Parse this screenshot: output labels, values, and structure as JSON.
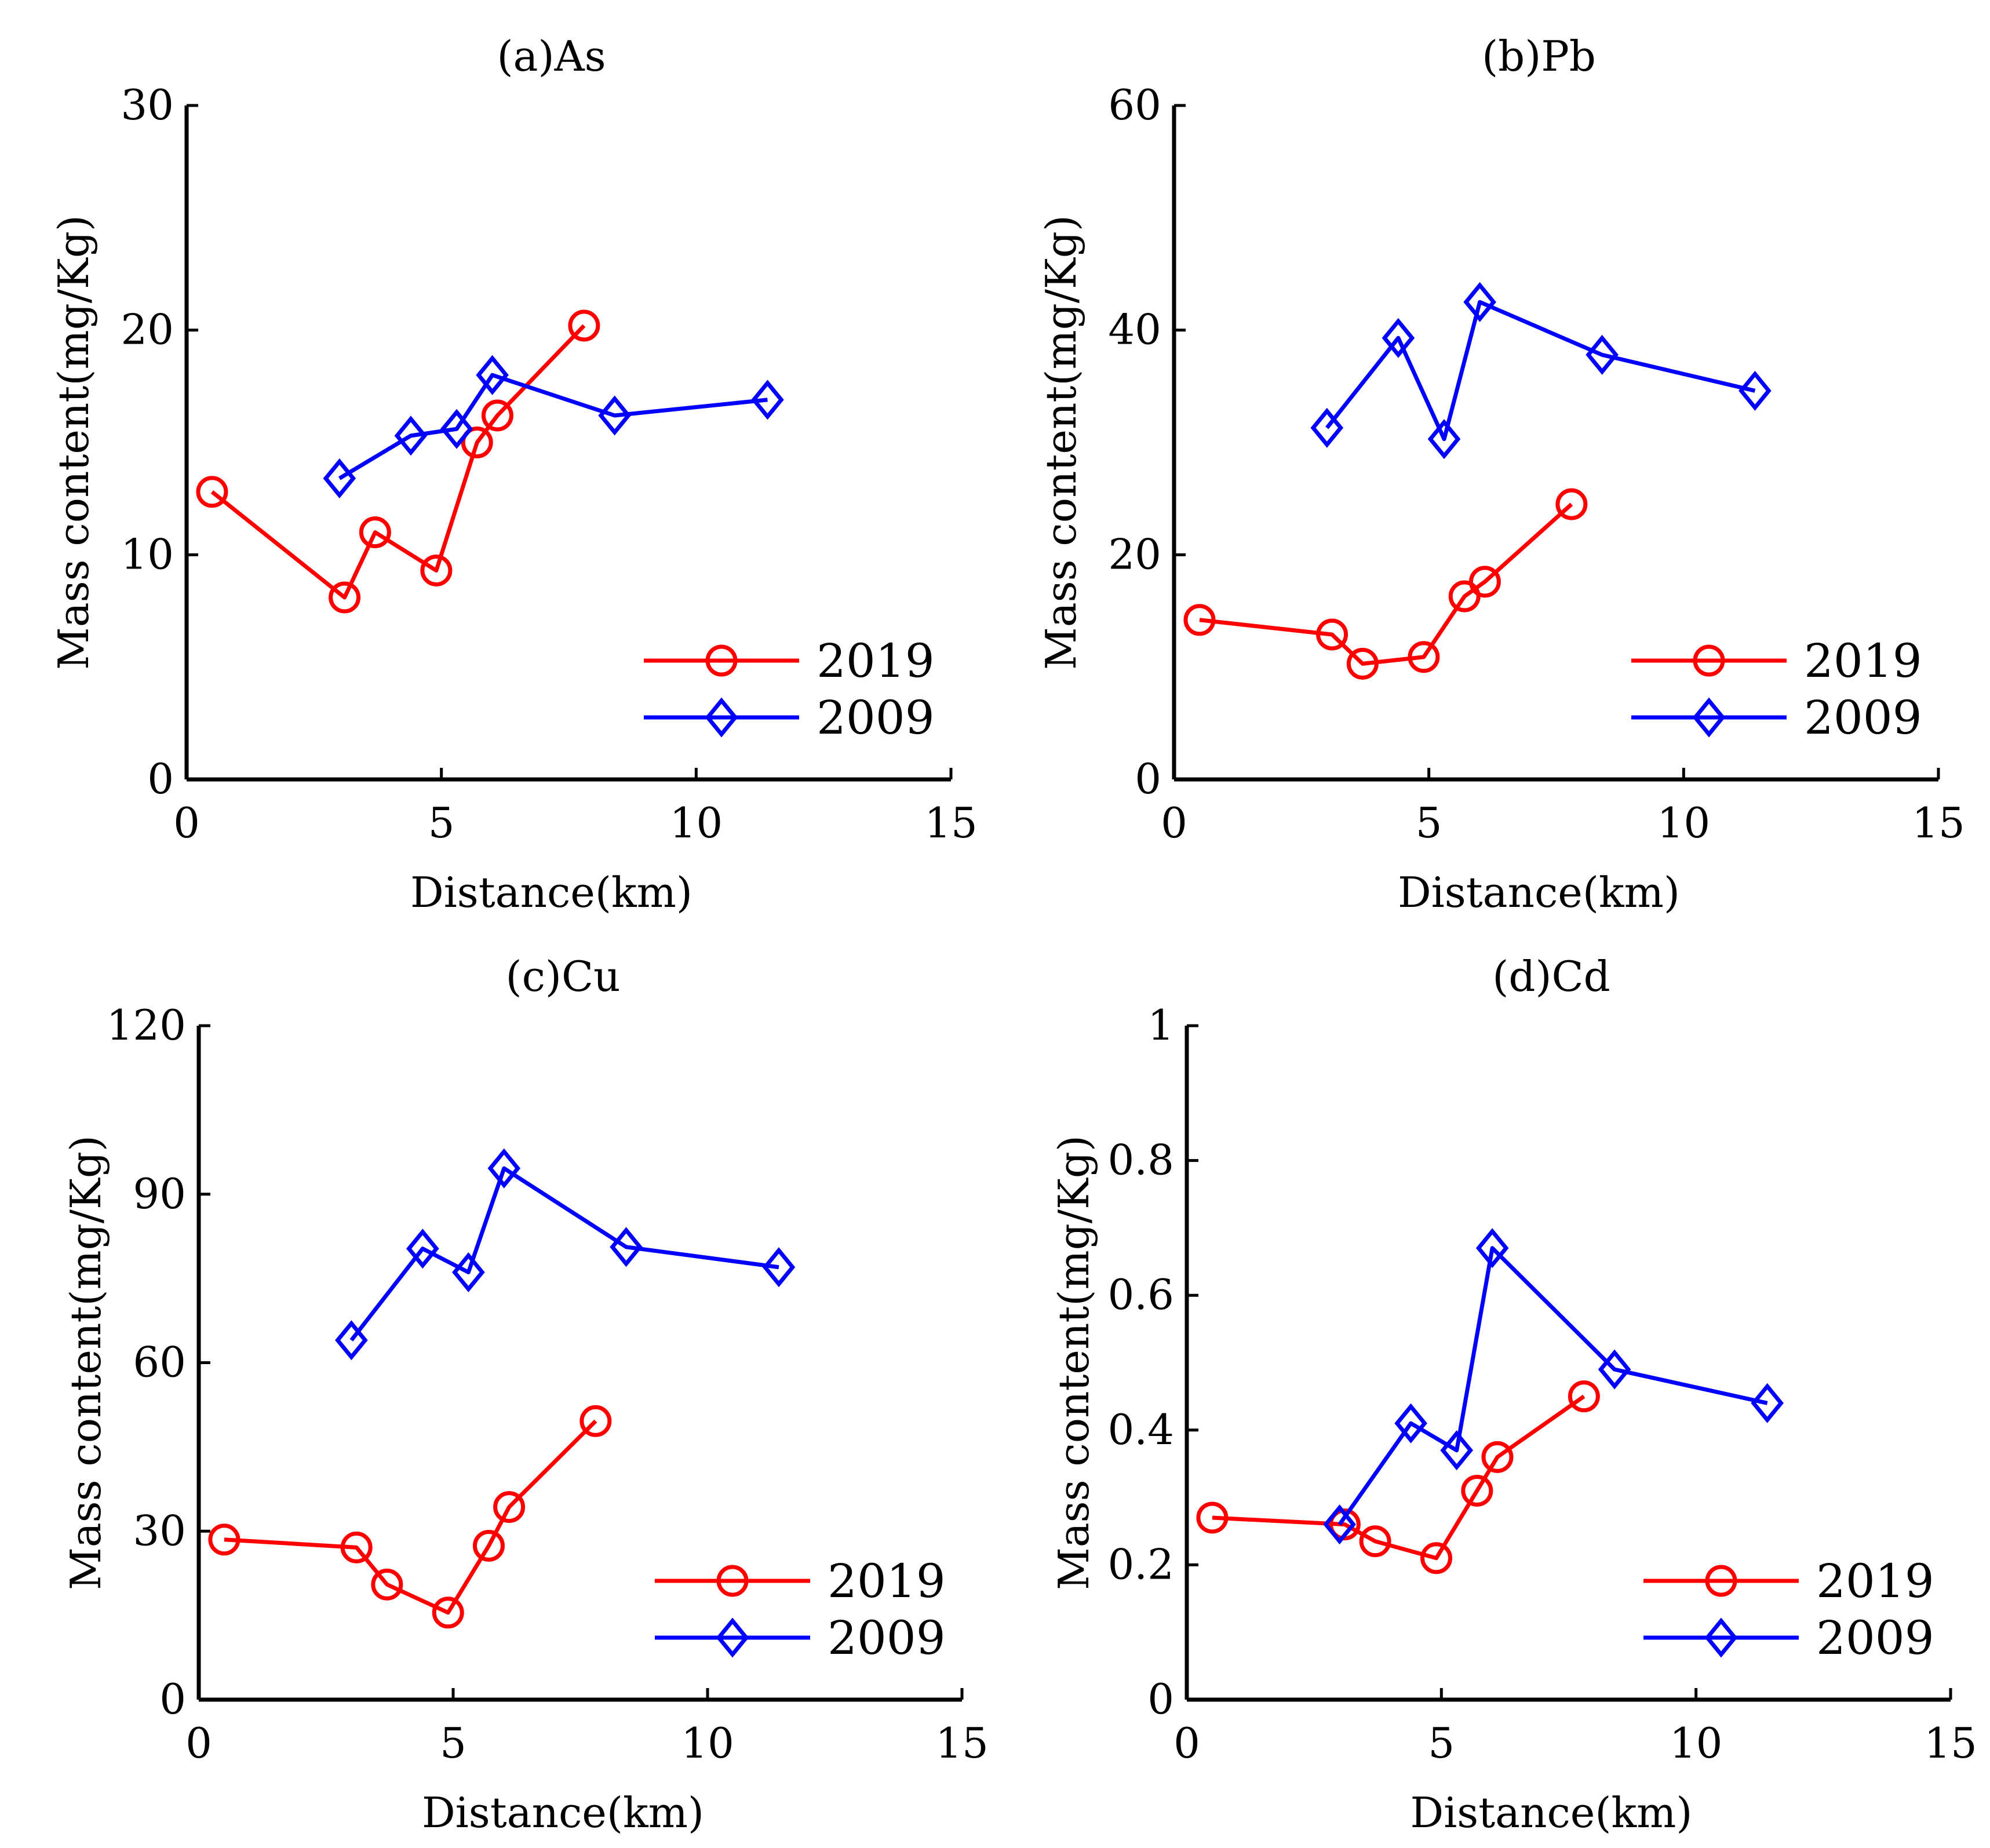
{
  "chart_data": [
    {
      "type": "line",
      "title": "(a)As",
      "xlabel": "Distance(km)",
      "ylabel": "Mass content(mg/Kg)",
      "xlim": [
        0,
        15
      ],
      "ylim": [
        0,
        30
      ],
      "xticks": [
        0,
        5,
        10,
        15
      ],
      "yticks": [
        0,
        10,
        20,
        30
      ],
      "xtick_labels": [
        "0",
        "5",
        "10",
        "15"
      ],
      "ytick_labels": [
        "0",
        "10",
        "20",
        "30"
      ],
      "legend_position": "bottom-right",
      "series": [
        {
          "name": "2019",
          "color": "#ff0000",
          "marker": "circle",
          "x": [
            0.5,
            3.1,
            3.7,
            4.9,
            5.7,
            6.1,
            7.8
          ],
          "y": [
            12.8,
            8.1,
            11.0,
            9.3,
            15.0,
            16.2,
            20.2
          ]
        },
        {
          "name": "2009",
          "color": "#0000ff",
          "marker": "diamond",
          "x": [
            3.0,
            4.4,
            5.3,
            6.0,
            8.4,
            11.4
          ],
          "y": [
            13.4,
            15.3,
            15.6,
            18.0,
            16.2,
            16.9
          ]
        }
      ]
    },
    {
      "type": "line",
      "title": "(b)Pb",
      "xlabel": "Distance(km)",
      "ylabel": "Mass content(mg/Kg)",
      "xlim": [
        0,
        15
      ],
      "ylim": [
        0,
        60
      ],
      "xticks": [
        0,
        5,
        10,
        15
      ],
      "yticks": [
        0,
        20,
        40,
        60
      ],
      "xtick_labels": [
        "0",
        "5",
        "10",
        "15"
      ],
      "ytick_labels": [
        "0",
        "20",
        "40",
        "60"
      ],
      "legend_position": "bottom-right",
      "series": [
        {
          "name": "2019",
          "color": "#ff0000",
          "marker": "circle",
          "x": [
            0.5,
            3.1,
            3.7,
            4.9,
            5.7,
            6.1,
            7.8
          ],
          "y": [
            14.2,
            12.9,
            10.3,
            10.9,
            16.3,
            17.6,
            24.5
          ]
        },
        {
          "name": "2009",
          "color": "#0000ff",
          "marker": "diamond",
          "x": [
            3.0,
            4.4,
            5.3,
            6.0,
            8.4,
            11.4
          ],
          "y": [
            31.3,
            39.3,
            30.3,
            42.5,
            37.8,
            34.6
          ]
        }
      ]
    },
    {
      "type": "line",
      "title": "(c)Cu",
      "xlabel": "Distance(km)",
      "ylabel": "Mass content(mg/Kg)",
      "xlim": [
        0,
        15
      ],
      "ylim": [
        0,
        120
      ],
      "xticks": [
        0,
        5,
        10,
        15
      ],
      "yticks": [
        0,
        30,
        60,
        90,
        120
      ],
      "xtick_labels": [
        "0",
        "5",
        "10",
        "15"
      ],
      "ytick_labels": [
        "0",
        "30",
        "60",
        "90",
        "120"
      ],
      "legend_position": "bottom-right",
      "series": [
        {
          "name": "2019",
          "color": "#ff0000",
          "marker": "circle",
          "x": [
            0.5,
            3.1,
            3.7,
            4.9,
            5.7,
            6.1,
            7.8
          ],
          "y": [
            28.5,
            27.1,
            20.5,
            15.5,
            27.4,
            34.3,
            49.6
          ]
        },
        {
          "name": "2009",
          "color": "#0000ff",
          "marker": "diamond",
          "x": [
            3.0,
            4.4,
            5.3,
            6.0,
            8.4,
            11.4
          ],
          "y": [
            64.0,
            80.3,
            76.1,
            94.6,
            80.6,
            77.0
          ]
        }
      ]
    },
    {
      "type": "line",
      "title": "(d)Cd",
      "xlabel": "Distance(km)",
      "ylabel": "Mass content(mg/Kg)",
      "xlim": [
        0,
        15
      ],
      "ylim": [
        0,
        1
      ],
      "xticks": [
        0,
        5,
        10,
        15
      ],
      "yticks": [
        0,
        0.2,
        0.4,
        0.6,
        0.8,
        1
      ],
      "xtick_labels": [
        "0",
        "5",
        "10",
        "15"
      ],
      "ytick_labels": [
        "0",
        "0.2",
        "0.4",
        "0.6",
        "0.8",
        "1"
      ],
      "legend_position": "bottom-right",
      "series": [
        {
          "name": "2019",
          "color": "#ff0000",
          "marker": "circle",
          "x": [
            0.5,
            3.1,
            3.7,
            4.9,
            5.7,
            6.1,
            7.8
          ],
          "y": [
            0.27,
            0.26,
            0.235,
            0.21,
            0.31,
            0.36,
            0.45
          ]
        },
        {
          "name": "2009",
          "color": "#0000ff",
          "marker": "diamond",
          "x": [
            3.0,
            4.4,
            5.3,
            6.0,
            8.4,
            11.4
          ],
          "y": [
            0.26,
            0.41,
            0.37,
            0.67,
            0.49,
            0.44
          ]
        }
      ]
    }
  ]
}
